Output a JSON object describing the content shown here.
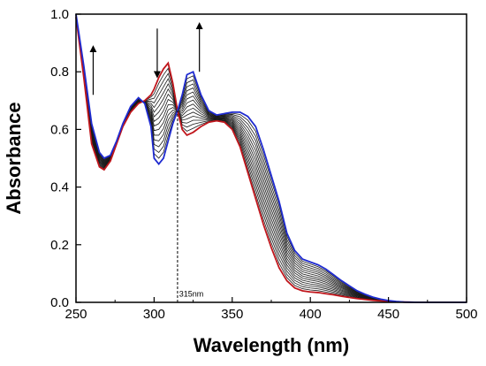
{
  "chart_data": {
    "type": "line",
    "xlabel": "Wavelength (nm)",
    "ylabel": "Absorbance",
    "xlim": [
      250,
      500
    ],
    "ylim": [
      0.0,
      1.0
    ],
    "x_ticks": [
      "250",
      "300",
      "350",
      "400",
      "450",
      "500"
    ],
    "y_ticks": [
      "0.0",
      "0.2",
      "0.4",
      "0.6",
      "0.8",
      "1.0"
    ],
    "grid": false,
    "legend": "none",
    "num_intermediate_curves": 14,
    "colors": {
      "start": "#c0161c",
      "end": "#1f2bd0",
      "intermediate": "#1a1a1a"
    },
    "series": [
      {
        "role": "start",
        "x": [
          250,
          255,
          260,
          265,
          268,
          272,
          276,
          280,
          285,
          290,
          294,
          298,
          300,
          303,
          306,
          309,
          312,
          315,
          318,
          321,
          325,
          330,
          335,
          340,
          345,
          350,
          355,
          360,
          365,
          370,
          375,
          380,
          385,
          390,
          395,
          400,
          405,
          410,
          415,
          420,
          425,
          430,
          435,
          440,
          445,
          450,
          455,
          460,
          470,
          480,
          490,
          500
        ],
        "y": [
          0.99,
          0.78,
          0.55,
          0.47,
          0.46,
          0.49,
          0.55,
          0.61,
          0.66,
          0.69,
          0.7,
          0.72,
          0.74,
          0.78,
          0.81,
          0.83,
          0.76,
          0.665,
          0.6,
          0.58,
          0.59,
          0.61,
          0.625,
          0.63,
          0.625,
          0.6,
          0.54,
          0.45,
          0.36,
          0.27,
          0.19,
          0.12,
          0.075,
          0.05,
          0.04,
          0.036,
          0.034,
          0.03,
          0.026,
          0.021,
          0.017,
          0.013,
          0.01,
          0.007,
          0.005,
          0.003,
          0.002,
          0.001,
          0.0,
          0.0,
          0.0,
          0.0
        ]
      },
      {
        "role": "end",
        "x": [
          250,
          255,
          260,
          265,
          268,
          272,
          276,
          280,
          285,
          290,
          294,
          298,
          300,
          303,
          306,
          309,
          312,
          315,
          318,
          321,
          325,
          330,
          335,
          340,
          345,
          350,
          355,
          360,
          365,
          370,
          375,
          380,
          385,
          390,
          395,
          400,
          405,
          410,
          415,
          420,
          425,
          430,
          435,
          440,
          445,
          450,
          455,
          460,
          470,
          480,
          490,
          500
        ],
        "y": [
          1.0,
          0.82,
          0.62,
          0.52,
          0.5,
          0.51,
          0.56,
          0.62,
          0.68,
          0.71,
          0.69,
          0.61,
          0.5,
          0.48,
          0.5,
          0.56,
          0.62,
          0.665,
          0.72,
          0.79,
          0.8,
          0.72,
          0.665,
          0.65,
          0.655,
          0.66,
          0.66,
          0.645,
          0.61,
          0.53,
          0.44,
          0.35,
          0.24,
          0.18,
          0.15,
          0.14,
          0.13,
          0.115,
          0.095,
          0.075,
          0.057,
          0.04,
          0.028,
          0.018,
          0.011,
          0.006,
          0.003,
          0.001,
          0.0,
          0.0,
          0.0,
          0.0
        ]
      }
    ],
    "annotations": [
      {
        "type": "arrow",
        "direction": "up",
        "x": 261,
        "y_from": 0.72,
        "y_to": 0.88
      },
      {
        "type": "arrow",
        "direction": "down",
        "x": 302,
        "y_from": 0.95,
        "y_to": 0.79
      },
      {
        "type": "arrow",
        "direction": "up",
        "x": 329,
        "y_from": 0.8,
        "y_to": 0.96
      },
      {
        "type": "vline",
        "style": "dashed",
        "x": 315,
        "y_from": 0.0,
        "y_to": 0.665
      },
      {
        "type": "text",
        "text": "315nm",
        "x": 316,
        "y": 0.02
      }
    ]
  }
}
